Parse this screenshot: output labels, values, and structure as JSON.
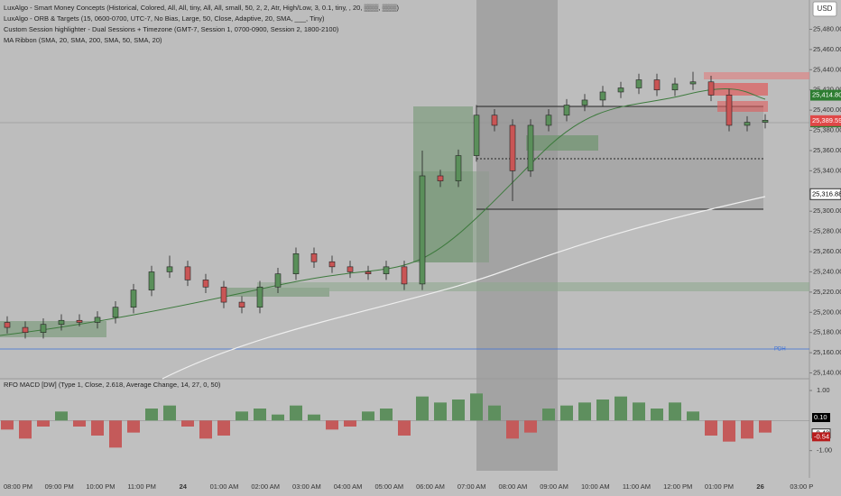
{
  "indicators": [
    "LuxAlgo - Smart Money Concepts (Historical, Colored, All, All, tiny, All, All, small, 50, 2, 2, Atr, High/Low, 3, 0.1, tiny, , 20, ▒▒▒, ▒▒▒)",
    "LuxAlgo - ORB & Targets (15, 0600-0700, UTC-7, No Bias, Large, 50, Close, Adaptive, 20, SMA, ___, Tiny)",
    "Custom Session highlighter - Dual Sessions + Timezone (GMT-7, Session 1, 0700-0900, Session 2, 1800-2100)",
    "MA Ribbon (SMA, 20, SMA, 200, SMA, 50, SMA, 20)"
  ],
  "currency": "USD",
  "pdh_label": "PDH",
  "chart_data": {
    "type": "candlestick",
    "open": [
      25190,
      25185,
      25180,
      25188,
      25192,
      25190,
      25195,
      25205,
      25222,
      25240,
      25245,
      25232,
      25225,
      25210,
      25205,
      25225,
      25238,
      25258,
      25250,
      25245,
      25240,
      25238,
      25245,
      25228,
      25335,
      25330,
      25355,
      25395,
      25385,
      25340,
      25385,
      25395,
      25405,
      25410,
      25418,
      25422,
      25430,
      25420,
      25426,
      25428,
      25415,
      25385,
      25388
    ],
    "high": [
      25196,
      25191,
      25194,
      25198,
      25198,
      25201,
      25211,
      25228,
      25246,
      25256,
      25251,
      25238,
      25231,
      25216,
      25231,
      25244,
      25264,
      25264,
      25256,
      25251,
      25246,
      25251,
      25251,
      25360,
      25341,
      25361,
      25405,
      25401,
      25391,
      25391,
      25401,
      25411,
      25416,
      25424,
      25428,
      25436,
      25436,
      25432,
      25438,
      25434,
      25421,
      25394,
      25396
    ],
    "low": [
      25179,
      25174,
      25174,
      25182,
      25186,
      25184,
      25189,
      25199,
      25216,
      25234,
      25226,
      25219,
      25204,
      25199,
      25199,
      25219,
      25232,
      25244,
      25239,
      25234,
      25232,
      25232,
      25222,
      25222,
      25324,
      25324,
      25349,
      25379,
      25310,
      25334,
      25379,
      25389,
      25399,
      25404,
      25412,
      25416,
      25414,
      25414,
      25420,
      25409,
      25379,
      25379,
      25382
    ],
    "close": [
      25185,
      25180,
      25188,
      25192,
      25190,
      25195,
      25205,
      25222,
      25240,
      25245,
      25232,
      25225,
      25210,
      25205,
      25225,
      25238,
      25258,
      25250,
      25245,
      25240,
      25238,
      25245,
      25228,
      25335,
      25330,
      25355,
      25395,
      25385,
      25340,
      25385,
      25395,
      25405,
      25410,
      25418,
      25422,
      25430,
      25420,
      25426,
      25428,
      25415,
      25385,
      25388,
      25390
    ],
    "up_color": "#5a8f5a",
    "down_color": "#c95555",
    "ylim": [
      25136,
      25509
    ],
    "yticks": [
      {
        "value": 25480,
        "label": "25,480.00"
      },
      {
        "value": 25460,
        "label": "25,460.00"
      },
      {
        "value": 25440,
        "label": "25,440.00"
      },
      {
        "value": 25420,
        "label": "25,420.00"
      },
      {
        "value": 25400,
        "label": "25,400.00"
      },
      {
        "value": 25380,
        "label": "25,380.00"
      },
      {
        "value": 25360,
        "label": "25,360.00"
      },
      {
        "value": 25340,
        "label": "25,340.00"
      },
      {
        "value": 25320,
        "label": "25,320.00"
      },
      {
        "value": 25300,
        "label": "25,300.00"
      },
      {
        "value": 25280,
        "label": "25,280.00"
      },
      {
        "value": 25260,
        "label": "25,260.00"
      },
      {
        "value": 25240,
        "label": "25,240.00"
      },
      {
        "value": 25220,
        "label": "25,220.00"
      },
      {
        "value": 25200,
        "label": "25,200.00"
      },
      {
        "value": 25180,
        "label": "25,180.00"
      },
      {
        "value": 25160,
        "label": "25,160.00"
      },
      {
        "value": 25140,
        "label": "25,140.00"
      }
    ],
    "xticks": [
      "08:00 PM",
      "09:00 PM",
      "10:00 PM",
      "11:00 PM",
      "24",
      "01:00 AM",
      "02:00 AM",
      "03:00 AM",
      "04:00 AM",
      "05:00 AM",
      "06:00 AM",
      "07:00 AM",
      "08:00 AM",
      "09:00 AM",
      "10:00 AM",
      "11:00 AM",
      "12:00 PM",
      "01:00 PM",
      "26",
      "03:00 P"
    ],
    "price_badges": [
      {
        "value": 25414.8,
        "label": "25,414.80",
        "color": "#2e7d32"
      },
      {
        "value": 25388.39,
        "label": "25,388.39",
        "color": "#2e7d32"
      },
      {
        "value": 25389.59,
        "label": "25,389.59",
        "color": "#e04848"
      },
      {
        "value": 25316.88,
        "label": "25,316.88",
        "color": "#ffffff"
      }
    ]
  },
  "oscillator": {
    "title": "RFO MACD [DW] (Type 1, Close, 2.618, Average Change, 14, 27, 0, 50)",
    "values": [
      -0.3,
      -0.6,
      -0.2,
      0.3,
      -0.2,
      -0.5,
      -0.9,
      -0.4,
      0.4,
      0.5,
      -0.2,
      -0.6,
      -0.5,
      0.3,
      0.4,
      0.2,
      0.5,
      0.2,
      -0.3,
      -0.2,
      0.3,
      0.4,
      -0.5,
      0.8,
      0.6,
      0.7,
      0.9,
      0.5,
      -0.6,
      -0.4,
      0.4,
      0.5,
      0.6,
      0.7,
      0.8,
      0.6,
      0.4,
      0.6,
      0.3,
      -0.5,
      -0.7,
      -0.6,
      -0.4
    ],
    "ylim": [
      -1.7,
      1.3
    ],
    "yticks": [
      {
        "value": 1,
        "label": "1.00"
      },
      {
        "value": -1,
        "label": "-1.00"
      }
    ],
    "badges": [
      {
        "value": 0.1,
        "label": "0.10",
        "color": "#000000"
      },
      {
        "value": -0.43,
        "label": "-0.43",
        "color": "#ffffff"
      },
      {
        "value": -0.54,
        "label": "-0.54",
        "color": "#b71c1c"
      }
    ]
  }
}
